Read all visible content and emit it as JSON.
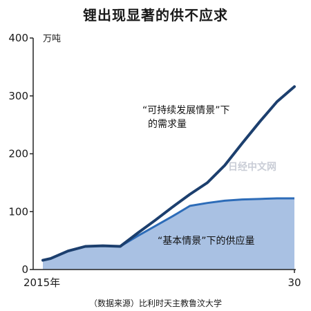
{
  "title": "锂出现显著的供不应求",
  "source": "（数据来源）比利时天主教鲁汶大学",
  "watermark": "日经中文网",
  "colors": {
    "demand_line": "#1c3f6e",
    "supply_line": "#2d6cb8",
    "supply_fill": "#a9c1e3"
  },
  "chart_data": {
    "type": "area",
    "x": [
      2015,
      2016,
      2017,
      2018,
      2019,
      2020,
      2021,
      2022,
      2023,
      2024,
      2025,
      2026,
      2027,
      2028,
      2029,
      2030
    ],
    "x_tick_labels": [
      "2015年",
      "30"
    ],
    "ylim": [
      0,
      400
    ],
    "y_ticks": [
      0,
      100,
      200,
      300,
      400
    ],
    "y_unit": "万吨",
    "series": [
      {
        "name": "“可持续发展情景”下的需求量",
        "values": [
          16,
          19,
          32,
          40,
          41,
          40,
          63,
          85,
          108,
          130,
          150,
          180,
          218,
          255,
          290,
          316
        ]
      },
      {
        "name": "“基本情景”下的供应量",
        "values": [
          16,
          19,
          32,
          40,
          41,
          40,
          58,
          75,
          92,
          110,
          115,
          119,
          121,
          122,
          123,
          123
        ]
      }
    ],
    "annotations": {
      "demand_line1": "“可持续发展情景”下",
      "demand_line2": "的需求量",
      "supply": "“基本情景”下的供应量"
    },
    "grid": false
  }
}
